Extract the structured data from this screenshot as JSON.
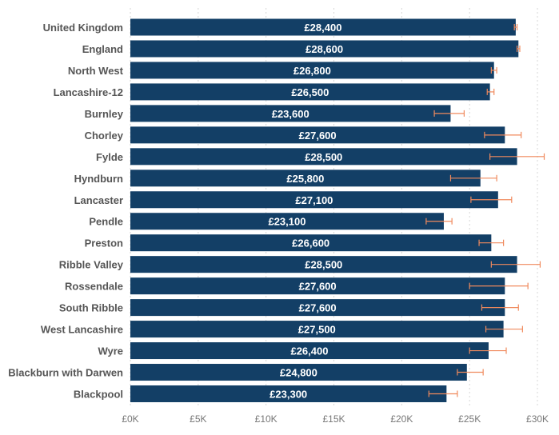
{
  "chart_data": {
    "type": "bar",
    "orientation": "horizontal",
    "title": "",
    "xlabel": "",
    "ylabel": "",
    "xlim": [
      0,
      31000
    ],
    "x_ticks": [
      0,
      5000,
      10000,
      15000,
      20000,
      25000,
      30000
    ],
    "x_tick_labels": [
      "£0K",
      "£5K",
      "£10K",
      "£15K",
      "£20K",
      "£25K",
      "£30K"
    ],
    "grid": "vertical dotted",
    "categories": [
      "United Kingdom",
      "England",
      "North West",
      "Lancashire-12",
      "Burnley",
      "Chorley",
      "Fylde",
      "Hyndburn",
      "Lancaster",
      "Pendle",
      "Preston",
      "Ribble Valley",
      "Rossendale",
      "South Ribble",
      "West Lancashire",
      "Wyre",
      "Blackburn with Darwen",
      "Blackpool"
    ],
    "values": [
      28400,
      28600,
      26800,
      26500,
      23600,
      27600,
      28500,
      25800,
      27100,
      23100,
      26600,
      28500,
      27600,
      27600,
      27500,
      26400,
      24800,
      23300
    ],
    "value_labels": [
      "£28,400",
      "£28,600",
      "£26,800",
      "£26,500",
      "£23,600",
      "£27,600",
      "£28,500",
      "£25,800",
      "£27,100",
      "£23,100",
      "£26,600",
      "£28,500",
      "£27,600",
      "£27,600",
      "£27,500",
      "£26,400",
      "£24,800",
      "£23,300"
    ],
    "error_low": [
      28300,
      28500,
      26600,
      26300,
      22400,
      26100,
      26500,
      23600,
      25100,
      21800,
      25700,
      26600,
      25000,
      25900,
      26200,
      25000,
      24100,
      22000
    ],
    "error_high": [
      28500,
      28700,
      27000,
      26800,
      24600,
      28800,
      30500,
      27000,
      28100,
      23700,
      27500,
      30200,
      29300,
      28600,
      28900,
      27700,
      26000,
      24100
    ],
    "colors": {
      "bar": "#133f66",
      "error": "#f08a5d",
      "grid": "#d6d6d6"
    }
  }
}
